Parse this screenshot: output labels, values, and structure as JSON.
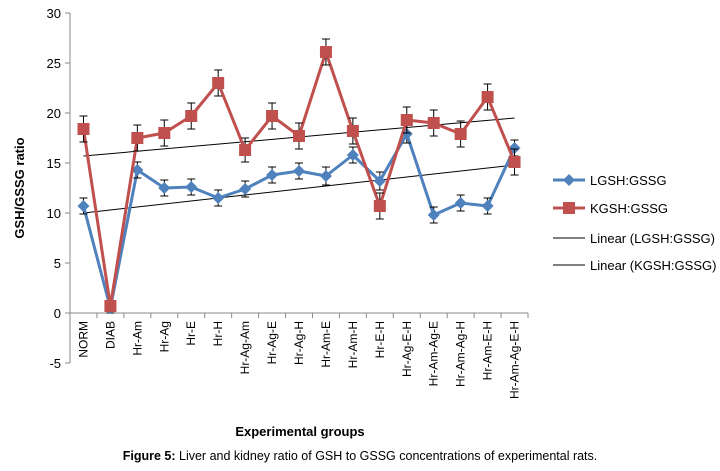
{
  "caption": {
    "label": "Figure 5:",
    "text": "Liver and kidney ratio of GSH to GSSG concentrations of experimental rats."
  },
  "chart_data": {
    "type": "line",
    "title": "",
    "xlabel": "Experimental groups",
    "ylabel": "GSH/GSSG ratio",
    "ylim": [
      -5,
      30
    ],
    "yticks": [
      -5,
      0,
      5,
      10,
      15,
      20,
      25,
      30
    ],
    "grid": false,
    "legend_position": "right",
    "categories": [
      "NORM",
      "DIAB",
      "Hr-Am",
      "Hr-Ag",
      "Hr-E",
      "Hr-H",
      "Hr-Ag-Am",
      "Hr-Ag-E",
      "Hr-Ag-H",
      "Hr-Am-E",
      "Hr-Am-H",
      "Hr-E-H",
      "Hr-Ag-E-H",
      "Hr-Am-Ag-E",
      "Hr-Am-Ag-H",
      "Hr-Am-E-H",
      "Hr-Am-Ag-E-H"
    ],
    "series": [
      {
        "name": "LGSH:GSSG",
        "color": "#4F81BD",
        "marker": "diamond",
        "values": [
          10.7,
          0.5,
          14.3,
          12.5,
          12.6,
          11.5,
          12.4,
          13.8,
          14.2,
          13.7,
          15.8,
          13.2,
          17.9,
          9.8,
          11.0,
          10.7,
          16.5
        ],
        "errors": [
          0.8,
          0.5,
          0.8,
          0.8,
          0.8,
          0.8,
          0.8,
          0.8,
          0.8,
          0.9,
          0.8,
          0.9,
          0.9,
          0.8,
          0.8,
          0.8,
          0.8
        ]
      },
      {
        "name": "KGSH:GSSG",
        "color": "#C0504D",
        "marker": "square",
        "values": [
          18.4,
          0.7,
          17.5,
          18.0,
          19.7,
          23.0,
          16.3,
          19.7,
          17.7,
          26.1,
          18.2,
          10.7,
          19.3,
          19.0,
          17.9,
          21.6,
          15.1
        ],
        "errors": [
          1.3,
          0.5,
          1.3,
          1.3,
          1.3,
          1.3,
          1.2,
          1.3,
          1.3,
          1.3,
          1.3,
          1.3,
          1.3,
          1.3,
          1.3,
          1.3,
          1.3
        ]
      }
    ],
    "trendlines": [
      {
        "name": "Linear (LGSH:GSSG)",
        "color": "#000000",
        "start": 10.0,
        "end": 14.8
      },
      {
        "name": "Linear (KGSH:GSSG)",
        "color": "#000000",
        "start": 15.7,
        "end": 19.5
      }
    ]
  }
}
